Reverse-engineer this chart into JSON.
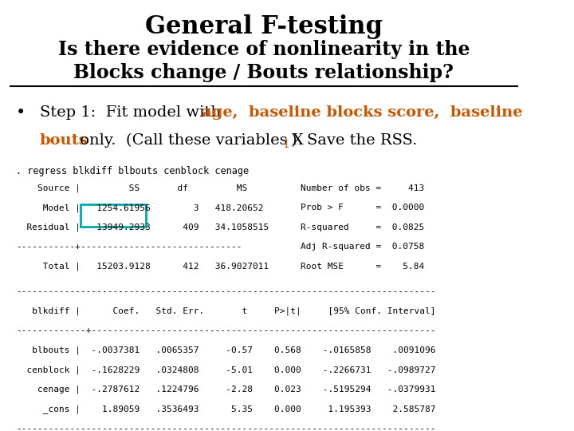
{
  "title": "General F-testing",
  "subtitle": "Is there evidence of nonlinearity in the\nBlocks change / Bouts relationship?",
  "bg_color": "#ffffff",
  "title_color": "#000000",
  "subtitle_color": "#000000",
  "stata_cmd": ". regress blkdiff blbouts cenblock cenage",
  "monospace_color": "#000000",
  "box_highlight_color": "#00aaaa",
  "table1_header": "    Source |         SS       df         MS",
  "table1_row1": "     Model |   1254.61956        3   418.20652",
  "table1_row2": "  Residual |   13949.2933      409   34.1058515",
  "table1_sep": "-----------+------------------------------",
  "table1_row3": "     Total |   15203.9128      412   36.9027011",
  "table1_right1": "Number of obs =     413",
  "table1_right2": "Prob > F      =  0.0000",
  "table1_right3": "R-squared     =  0.0825",
  "table1_right4": "Adj R-squared =  0.0758",
  "table1_right5": "Root MSE      =    5.84",
  "table2_sep": "------------------------------------------------------------------------------",
  "table2_header": "   blkdiff |      Coef.   Std. Err.       t     P>|t|     [95% Conf. Interval]",
  "table2_sep2": "-------------+----------------------------------------------------------------",
  "table2_row1": "   blbouts |  -.0037381   .0065357     -0.57    0.568    -.0165858    .0091096",
  "table2_row2": "  cenblock |  -.1628229   .0324808     -5.01    0.000    -.2266731   -.0989727",
  "table2_row3": "    cenage |  -.2787612   .1224796     -2.28    0.023    -.5195294   -.0379931",
  "table2_row4": "     _cons |    1.89059   .3536493      5.35    0.000     1.195393    2.585787",
  "table2_sep3": "------------------------------------------------------------------------------"
}
